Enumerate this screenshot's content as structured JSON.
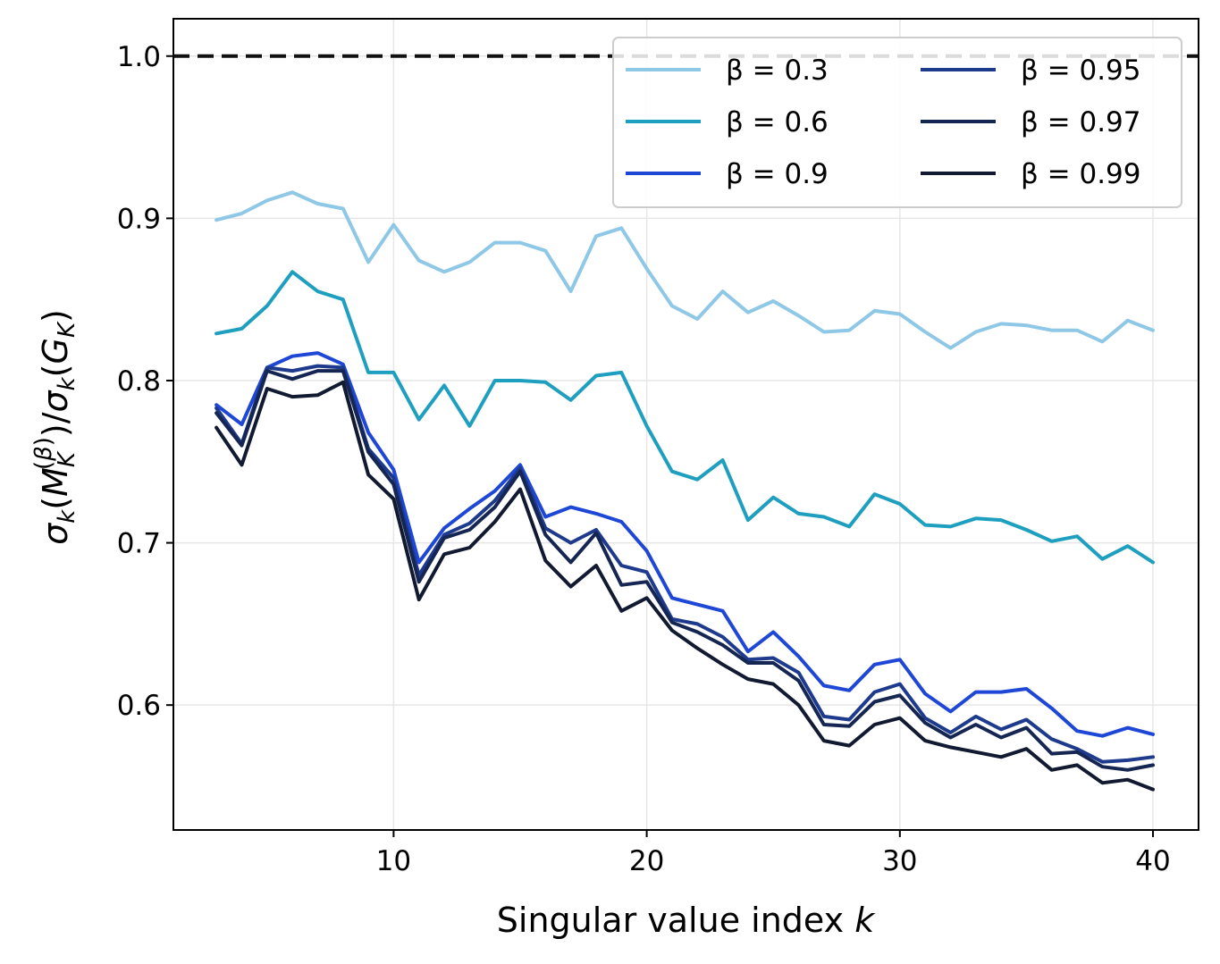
{
  "chart_data": {
    "type": "line",
    "xlabel": "Singular value index k",
    "ylabel": "σk(MK(β))/σk(GK)",
    "xlim": [
      1.3,
      41.8
    ],
    "ylim": [
      0.523,
      1.023
    ],
    "x_ticks": [
      10,
      20,
      30,
      40
    ],
    "y_ticks": [
      0.6,
      0.7,
      0.8,
      0.9,
      1.0
    ],
    "x_tick_labels": [
      "10",
      "20",
      "30",
      "40"
    ],
    "y_tick_labels": [
      "0.6",
      "0.7",
      "0.8",
      "0.9",
      "1.0"
    ],
    "grid": true,
    "reference_line": {
      "y": 1.0,
      "style": "dashed",
      "color": "#111111"
    },
    "legend": {
      "position": "top-right",
      "columns": 2
    },
    "x": [
      3,
      4,
      5,
      6,
      7,
      8,
      9,
      10,
      11,
      12,
      13,
      14,
      15,
      16,
      17,
      18,
      19,
      20,
      21,
      22,
      23,
      24,
      25,
      26,
      27,
      28,
      29,
      30,
      31,
      32,
      33,
      34,
      35,
      36,
      37,
      38,
      39,
      40
    ],
    "series": [
      {
        "name": "β = 0.3",
        "color": "#8ec8e6",
        "values": [
          0.899,
          0.903,
          0.911,
          0.916,
          0.909,
          0.906,
          0.873,
          0.896,
          0.874,
          0.867,
          0.873,
          0.885,
          0.885,
          0.88,
          0.855,
          0.889,
          0.894,
          0.869,
          0.846,
          0.838,
          0.855,
          0.842,
          0.849,
          0.84,
          0.83,
          0.831,
          0.843,
          0.841,
          0.83,
          0.82,
          0.83,
          0.835,
          0.834,
          0.831,
          0.831,
          0.824,
          0.837,
          0.831
        ]
      },
      {
        "name": "β = 0.6",
        "color": "#1f9fbf",
        "values": [
          0.829,
          0.832,
          0.846,
          0.867,
          0.855,
          0.85,
          0.805,
          0.805,
          0.776,
          0.797,
          0.772,
          0.8,
          0.8,
          0.799,
          0.788,
          0.803,
          0.805,
          0.772,
          0.744,
          0.739,
          0.751,
          0.714,
          0.728,
          0.718,
          0.716,
          0.71,
          0.73,
          0.724,
          0.711,
          0.71,
          0.715,
          0.714,
          0.708,
          0.701,
          0.704,
          0.69,
          0.698,
          0.688
        ]
      },
      {
        "name": "β = 0.9",
        "color": "#1e47d6",
        "values": [
          0.785,
          0.773,
          0.808,
          0.815,
          0.817,
          0.81,
          0.768,
          0.745,
          0.688,
          0.709,
          0.721,
          0.732,
          0.748,
          0.716,
          0.722,
          0.718,
          0.713,
          0.695,
          0.666,
          0.662,
          0.658,
          0.633,
          0.645,
          0.63,
          0.612,
          0.609,
          0.625,
          0.628,
          0.607,
          0.596,
          0.608,
          0.608,
          0.61,
          0.598,
          0.584,
          0.581,
          0.586,
          0.582
        ]
      },
      {
        "name": "β = 0.95",
        "color": "#1d3a8c",
        "values": [
          0.783,
          0.761,
          0.808,
          0.806,
          0.809,
          0.808,
          0.758,
          0.74,
          0.68,
          0.705,
          0.712,
          0.726,
          0.746,
          0.709,
          0.7,
          0.708,
          0.686,
          0.682,
          0.653,
          0.65,
          0.642,
          0.628,
          0.629,
          0.62,
          0.593,
          0.591,
          0.608,
          0.613,
          0.592,
          0.583,
          0.593,
          0.585,
          0.591,
          0.579,
          0.573,
          0.565,
          0.566,
          0.568
        ]
      },
      {
        "name": "β = 0.97",
        "color": "#162652",
        "values": [
          0.78,
          0.76,
          0.806,
          0.801,
          0.806,
          0.806,
          0.756,
          0.736,
          0.676,
          0.703,
          0.708,
          0.722,
          0.744,
          0.705,
          0.688,
          0.706,
          0.674,
          0.676,
          0.651,
          0.645,
          0.637,
          0.626,
          0.626,
          0.615,
          0.588,
          0.587,
          0.602,
          0.606,
          0.589,
          0.58,
          0.588,
          0.58,
          0.586,
          0.57,
          0.571,
          0.562,
          0.56,
          0.563
        ]
      },
      {
        "name": "β = 0.99",
        "color": "#111a30",
        "values": [
          0.771,
          0.748,
          0.795,
          0.79,
          0.791,
          0.799,
          0.742,
          0.727,
          0.665,
          0.693,
          0.697,
          0.713,
          0.733,
          0.689,
          0.673,
          0.686,
          0.658,
          0.666,
          0.646,
          0.635,
          0.625,
          0.616,
          0.613,
          0.6,
          0.578,
          0.575,
          0.588,
          0.592,
          0.578,
          0.574,
          0.571,
          0.568,
          0.573,
          0.56,
          0.563,
          0.552,
          0.554,
          0.548
        ]
      }
    ]
  }
}
